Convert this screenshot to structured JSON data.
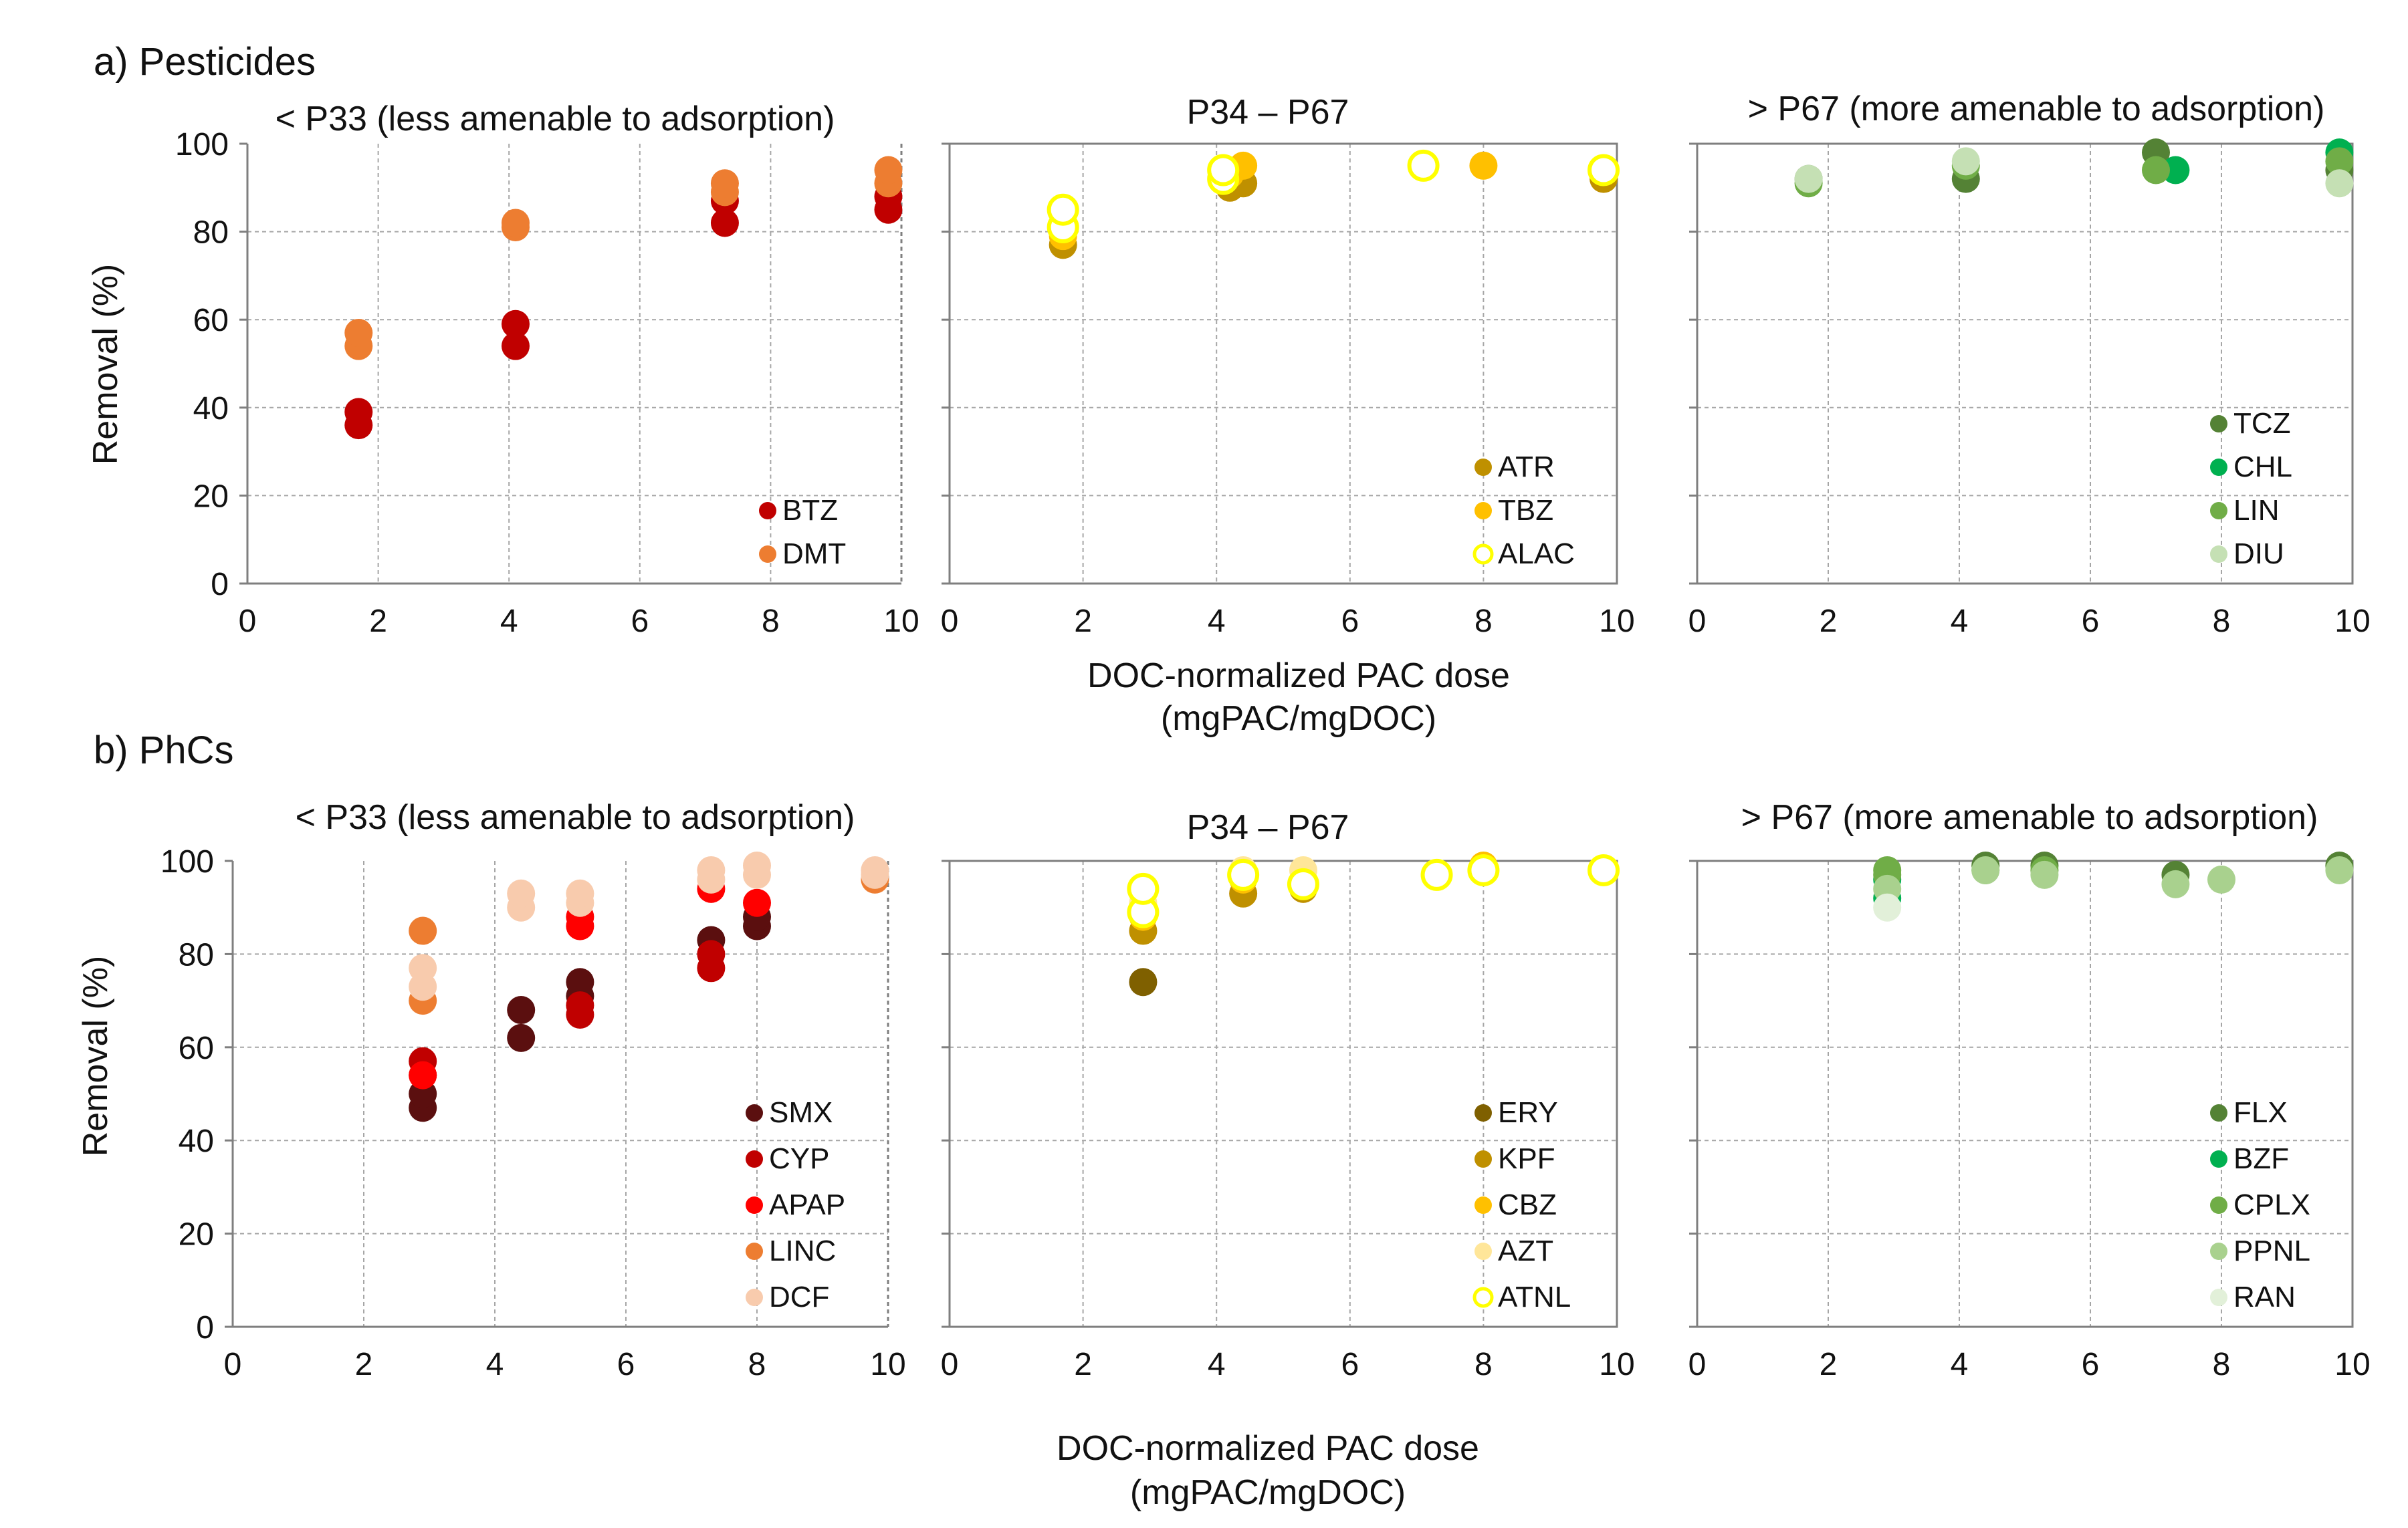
{
  "figure": {
    "xlabel_line1": "DOC-normalized PAC dose",
    "xlabel_line2": "(mgPAC/mgDOC)",
    "ylabel": "Removal (%)",
    "x_ticks": [
      "0",
      "2",
      "4",
      "6",
      "8",
      "10"
    ],
    "y_ticks": [
      "0",
      "20",
      "40",
      "60",
      "80",
      "100"
    ]
  },
  "sections": [
    {
      "label": "a) Pesticides"
    },
    {
      "label": "b) PhCs"
    }
  ],
  "chart_data": [
    {
      "type": "scatter",
      "title": "< P33  (less amenable to adsorption)",
      "xlabel": "DOC-normalized PAC dose (mgPAC/mgDOC)",
      "ylabel": "Removal (%)",
      "xlim": [
        0,
        10
      ],
      "ylim": [
        0,
        100
      ],
      "grid": true,
      "legend": "bottom-right",
      "series": [
        {
          "name": "BTZ",
          "color": "#c00000",
          "hollow": false,
          "points": [
            [
              1.7,
              36
            ],
            [
              1.7,
              39
            ],
            [
              4.1,
              54
            ],
            [
              4.1,
              59
            ],
            [
              7.3,
              82
            ],
            [
              7.3,
              87
            ],
            [
              9.8,
              85
            ],
            [
              9.8,
              88
            ]
          ]
        },
        {
          "name": "DMT",
          "color": "#ed7d31",
          "hollow": false,
          "points": [
            [
              1.7,
              54
            ],
            [
              1.7,
              57
            ],
            [
              4.1,
              81
            ],
            [
              4.1,
              82
            ],
            [
              7.3,
              89
            ],
            [
              7.3,
              91
            ],
            [
              9.8,
              91
            ],
            [
              9.8,
              94
            ]
          ]
        }
      ]
    },
    {
      "type": "scatter",
      "title": "P34 – P67",
      "xlabel": "DOC-normalized PAC dose (mgPAC/mgDOC)",
      "ylabel": "Removal (%)",
      "xlim": [
        0,
        10
      ],
      "ylim": [
        0,
        100
      ],
      "grid": true,
      "legend": "bottom-right",
      "series": [
        {
          "name": "ATR",
          "color": "#bf9000",
          "hollow": false,
          "points": [
            [
              1.7,
              77
            ],
            [
              4.2,
              90
            ],
            [
              4.4,
              91
            ],
            [
              9.8,
              92
            ]
          ]
        },
        {
          "name": "TBZ",
          "color": "#ffc000",
          "hollow": false,
          "points": [
            [
              1.7,
              79
            ],
            [
              4.2,
              93
            ],
            [
              4.4,
              95
            ],
            [
              7.1,
              95
            ],
            [
              8.0,
              95
            ],
            [
              9.8,
              94
            ]
          ]
        },
        {
          "name": "ALAC",
          "color": "#ffff00",
          "hollow": true,
          "points": [
            [
              1.7,
              81
            ],
            [
              1.7,
              85
            ],
            [
              4.1,
              92
            ],
            [
              4.1,
              94
            ],
            [
              7.1,
              95
            ],
            [
              9.8,
              94
            ]
          ]
        }
      ]
    },
    {
      "type": "scatter",
      "title": "> P67 (more amenable to adsorption)",
      "xlabel": "DOC-normalized PAC dose (mgPAC/mgDOC)",
      "ylabel": "Removal (%)",
      "xlim": [
        0,
        10
      ],
      "ylim": [
        0,
        100
      ],
      "grid": true,
      "legend": "bottom-right",
      "series": [
        {
          "name": "TCZ",
          "color": "#548235",
          "hollow": false,
          "points": [
            [
              1.7,
              92
            ],
            [
              4.1,
              92
            ],
            [
              7.0,
              98
            ],
            [
              9.8,
              94
            ]
          ]
        },
        {
          "name": "CHL",
          "color": "#00b050",
          "hollow": false,
          "points": [
            [
              7.3,
              94
            ],
            [
              9.8,
              98
            ]
          ]
        },
        {
          "name": "LIN",
          "color": "#70ad47",
          "hollow": false,
          "points": [
            [
              1.7,
              91
            ],
            [
              4.1,
              95
            ],
            [
              7.0,
              94
            ],
            [
              9.8,
              96
            ]
          ]
        },
        {
          "name": "DIU",
          "color": "#c5e0b4",
          "hollow": false,
          "points": [
            [
              1.7,
              92
            ],
            [
              4.1,
              96
            ],
            [
              9.8,
              91
            ]
          ]
        }
      ]
    },
    {
      "type": "scatter",
      "title": "< P33 (less amenable to adsorption)",
      "xlabel": "DOC-normalized PAC dose (mgPAC/mgDOC)",
      "ylabel": "Removal (%)",
      "xlim": [
        0,
        10
      ],
      "ylim": [
        0,
        100
      ],
      "grid": true,
      "legend": "bottom-right",
      "series": [
        {
          "name": "SMX",
          "color": "#5b0f0f",
          "hollow": false,
          "points": [
            [
              2.9,
              47
            ],
            [
              2.9,
              50
            ],
            [
              4.4,
              62
            ],
            [
              4.4,
              68
            ],
            [
              5.3,
              71
            ],
            [
              5.3,
              74
            ],
            [
              7.3,
              83
            ],
            [
              8.0,
              86
            ],
            [
              8.0,
              88
            ]
          ]
        },
        {
          "name": "CYP",
          "color": "#c00000",
          "hollow": false,
          "points": [
            [
              2.9,
              54
            ],
            [
              2.9,
              57
            ],
            [
              5.3,
              67
            ],
            [
              5.3,
              69
            ],
            [
              7.3,
              77
            ],
            [
              7.3,
              80
            ]
          ]
        },
        {
          "name": "APAP",
          "color": "#ff0000",
          "hollow": false,
          "points": [
            [
              2.9,
              54
            ],
            [
              5.3,
              86
            ],
            [
              5.3,
              88
            ],
            [
              7.3,
              94
            ],
            [
              8.0,
              91
            ]
          ]
        },
        {
          "name": "LINC",
          "color": "#ed7d31",
          "hollow": false,
          "points": [
            [
              2.9,
              70
            ],
            [
              2.9,
              85
            ],
            [
              9.8,
              96
            ]
          ]
        },
        {
          "name": "DCF",
          "color": "#f8cbad",
          "hollow": false,
          "points": [
            [
              2.9,
              73
            ],
            [
              2.9,
              77
            ],
            [
              4.4,
              90
            ],
            [
              4.4,
              93
            ],
            [
              5.3,
              91
            ],
            [
              5.3,
              93
            ],
            [
              7.3,
              96
            ],
            [
              7.3,
              98
            ],
            [
              8.0,
              97
            ],
            [
              8.0,
              99
            ],
            [
              9.8,
              97
            ],
            [
              9.8,
              98
            ]
          ]
        }
      ]
    },
    {
      "type": "scatter",
      "title": "P34 – P67",
      "xlabel": "DOC-normalized PAC dose (mgPAC/mgDOC)",
      "ylabel": "Removal (%)",
      "xlim": [
        0,
        10
      ],
      "ylim": [
        0,
        100
      ],
      "grid": true,
      "legend": "bottom-right",
      "series": [
        {
          "name": "ERY",
          "color": "#7f6000",
          "hollow": false,
          "points": [
            [
              2.9,
              74
            ]
          ]
        },
        {
          "name": "KPF",
          "color": "#bf9000",
          "hollow": false,
          "points": [
            [
              2.9,
              85
            ],
            [
              4.4,
              93
            ],
            [
              5.3,
              94
            ],
            [
              8.0,
              98
            ]
          ]
        },
        {
          "name": "CBZ",
          "color": "#ffc000",
          "hollow": false,
          "points": [
            [
              2.9,
              88
            ],
            [
              4.4,
              96
            ],
            [
              5.3,
              96
            ],
            [
              7.3,
              97
            ],
            [
              8.0,
              99
            ],
            [
              9.8,
              98
            ]
          ]
        },
        {
          "name": "AZT",
          "color": "#ffe699",
          "hollow": false,
          "points": [
            [
              2.9,
              91
            ],
            [
              4.4,
              98
            ],
            [
              5.3,
              98
            ],
            [
              9.8,
              98
            ]
          ]
        },
        {
          "name": "ATNL",
          "color": "#ffff00",
          "hollow": true,
          "points": [
            [
              2.9,
              89
            ],
            [
              2.9,
              94
            ],
            [
              4.4,
              97
            ],
            [
              5.3,
              95
            ],
            [
              7.3,
              97
            ],
            [
              8.0,
              98
            ],
            [
              9.8,
              98
            ]
          ]
        }
      ]
    },
    {
      "type": "scatter",
      "title": "> P67 (more amenable to adsorption)",
      "xlabel": "DOC-normalized PAC dose (mgPAC/mgDOC)",
      "ylabel": "Removal (%)",
      "xlim": [
        0,
        10
      ],
      "ylim": [
        0,
        100
      ],
      "grid": true,
      "legend": "bottom-right",
      "series": [
        {
          "name": "FLX",
          "color": "#548235",
          "hollow": false,
          "points": [
            [
              4.4,
              99
            ],
            [
              5.3,
              99
            ],
            [
              7.3,
              97
            ],
            [
              9.8,
              99
            ]
          ]
        },
        {
          "name": "BZF",
          "color": "#00b050",
          "hollow": false,
          "points": [
            [
              2.9,
              92
            ],
            [
              2.9,
              96
            ]
          ]
        },
        {
          "name": "CPLX",
          "color": "#70ad47",
          "hollow": false,
          "points": [
            [
              2.9,
              97
            ],
            [
              2.9,
              98
            ],
            [
              4.4,
              98
            ],
            [
              5.3,
              98
            ]
          ]
        },
        {
          "name": "PPNL",
          "color": "#a9d18e",
          "hollow": false,
          "points": [
            [
              2.9,
              94
            ],
            [
              4.4,
              98
            ],
            [
              5.3,
              97
            ],
            [
              7.3,
              95
            ],
            [
              8.0,
              96
            ],
            [
              9.8,
              98
            ]
          ]
        },
        {
          "name": "RAN",
          "color": "#e2f0d9",
          "hollow": false,
          "points": [
            [
              2.9,
              90
            ]
          ]
        }
      ]
    }
  ]
}
